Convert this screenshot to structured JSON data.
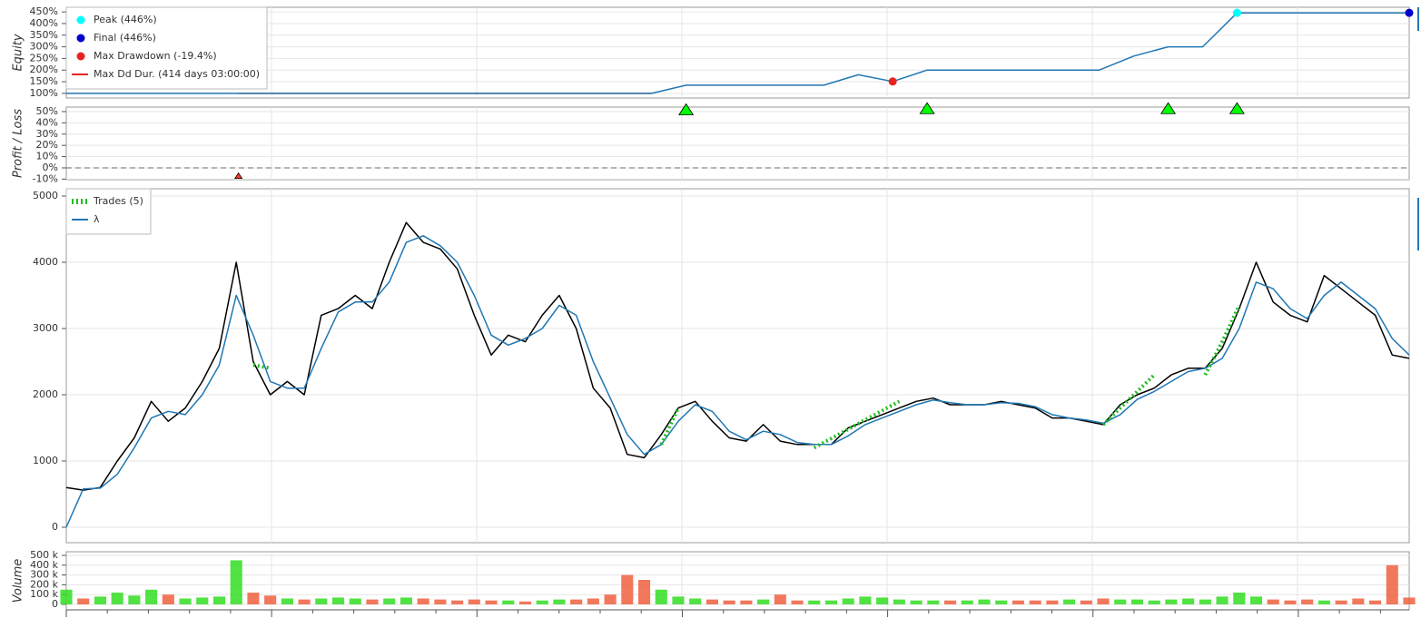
{
  "chart_data": [
    {
      "type": "line",
      "y_label": "Equity",
      "legend": "top-left",
      "grid": true,
      "ylim": [
        80,
        470
      ],
      "yticks": [
        {
          "value": 100,
          "label": "100%"
        },
        {
          "value": 150,
          "label": "150%"
        },
        {
          "value": 200,
          "label": "200%"
        },
        {
          "value": 250,
          "label": "250%"
        },
        {
          "value": 300,
          "label": "300%"
        },
        {
          "value": 350,
          "label": "350%"
        },
        {
          "value": 400,
          "label": "400%"
        },
        {
          "value": 450,
          "label": "450%"
        }
      ],
      "series": [
        {
          "color": "#1f77b4",
          "style": "line",
          "values": [
            100,
            100,
            100,
            100,
            100,
            100,
            100,
            100,
            100,
            100,
            100,
            100,
            100,
            100,
            100,
            100,
            100,
            100,
            135,
            135,
            135,
            135,
            135,
            180,
            151,
            200,
            200,
            200,
            200,
            200,
            200,
            260,
            300,
            300,
            446,
            446,
            446,
            446,
            446,
            446
          ]
        },
        {
          "name": "Peak (446%)",
          "color": "#00ffff",
          "style": "dot",
          "values": [
            null,
            null,
            null,
            null,
            null,
            null,
            null,
            null,
            null,
            null,
            null,
            null,
            null,
            null,
            null,
            null,
            null,
            null,
            null,
            null,
            null,
            null,
            null,
            null,
            null,
            null,
            null,
            null,
            null,
            null,
            null,
            null,
            null,
            null,
            446,
            null,
            null,
            null,
            null,
            null
          ]
        },
        {
          "name": "Final (446%)",
          "color": "#0000cc",
          "style": "dot",
          "values": [
            null,
            null,
            null,
            null,
            null,
            null,
            null,
            null,
            null,
            null,
            null,
            null,
            null,
            null,
            null,
            null,
            null,
            null,
            null,
            null,
            null,
            null,
            null,
            null,
            null,
            null,
            null,
            null,
            null,
            null,
            null,
            null,
            null,
            null,
            null,
            null,
            null,
            null,
            null,
            446
          ]
        },
        {
          "name": "Max Drawdown (-19.4%)",
          "color": "#e8231f",
          "style": "dot",
          "values": [
            null,
            null,
            null,
            null,
            null,
            null,
            null,
            null,
            null,
            null,
            null,
            null,
            null,
            null,
            null,
            null,
            null,
            null,
            null,
            null,
            null,
            null,
            null,
            null,
            151,
            null,
            null,
            null,
            null,
            null,
            null,
            null,
            null,
            null,
            null,
            null,
            null,
            null,
            null,
            null
          ]
        },
        {
          "name": "Max Dd Dur. (414 days 03:00:00)",
          "color": "#e8231f",
          "style": "line",
          "values": [
            null,
            null,
            null,
            null,
            null,
            100,
            100,
            100,
            100,
            100,
            100,
            100,
            100,
            100,
            100,
            100,
            100,
            100,
            null,
            null,
            null,
            null,
            null,
            null,
            null,
            null,
            null,
            null,
            null,
            null,
            null,
            null,
            null,
            null,
            null,
            null,
            null,
            null,
            null,
            null
          ]
        }
      ]
    },
    {
      "type": "scatter",
      "y_label": "Profit / Loss",
      "grid": true,
      "hline": 0,
      "ylim": [
        -10.5,
        54
      ],
      "yticks": [
        {
          "value": 50,
          "label": "50%"
        },
        {
          "value": 40,
          "label": "40%"
        },
        {
          "value": 30,
          "label": "30%"
        },
        {
          "value": 20,
          "label": "20%"
        },
        {
          "value": 10,
          "label": "10%"
        },
        {
          "value": 0,
          "label": "0%"
        },
        {
          "value": -10,
          "label": "-10%"
        }
      ],
      "series": [
        {
          "color": "#00ff00",
          "negative_color": "#ff3b30",
          "style": "triangle",
          "values": [
            null,
            null,
            null,
            null,
            null,
            -7,
            null,
            null,
            null,
            null,
            null,
            null,
            null,
            null,
            null,
            null,
            null,
            null,
            52,
            null,
            null,
            null,
            null,
            null,
            null,
            53,
            null,
            null,
            null,
            null,
            null,
            null,
            53,
            null,
            53,
            null,
            null,
            null,
            null,
            null
          ]
        }
      ]
    },
    {
      "type": "line",
      "legend": "top-left",
      "grid": true,
      "ylim": [
        -233,
        5110
      ],
      "yticks": [
        0,
        1000,
        2000,
        3000,
        4000,
        5000
      ],
      "series": [
        {
          "name": "Trades (5)",
          "color": "#22bb22",
          "style": "dashed",
          "values": [
            null,
            null,
            null,
            null,
            null,
            null,
            null,
            null,
            null,
            null,
            null,
            2450,
            2400,
            null,
            null,
            null,
            null,
            null,
            null,
            null,
            null,
            null,
            null,
            null,
            null,
            null,
            null,
            null,
            null,
            null,
            null,
            null,
            null,
            null,
            null,
            1250,
            1800,
            null,
            null,
            null,
            null,
            null,
            null,
            null,
            1200,
            1340,
            1480,
            1620,
            1760,
            1900,
            null,
            null,
            null,
            null,
            null,
            null,
            null,
            null,
            null,
            null,
            null,
            1550,
            1800,
            2050,
            2300,
            null,
            null,
            2300,
            2800,
            3350,
            null,
            null,
            null,
            null,
            null,
            null,
            null,
            null,
            null,
            null
          ]
        },
        {
          "name": "λ",
          "color": "#1f77b4",
          "style": "line",
          "values": [
            0,
            580,
            590,
            800,
            1200,
            1650,
            1750,
            1700,
            2000,
            2450,
            3500,
            2900,
            2200,
            2100,
            2100,
            2700,
            3250,
            3400,
            3400,
            3700,
            4300,
            4400,
            4250,
            4000,
            3500,
            2900,
            2750,
            2850,
            3000,
            3350,
            3200,
            2500,
            1950,
            1400,
            1100,
            1250,
            1600,
            1850,
            1750,
            1450,
            1320,
            1450,
            1400,
            1280,
            1250,
            1250,
            1380,
            1550,
            1650,
            1750,
            1850,
            1920,
            1880,
            1850,
            1850,
            1880,
            1870,
            1820,
            1700,
            1650,
            1620,
            1570,
            1700,
            1930,
            2050,
            2200,
            2350,
            2400,
            2550,
            3000,
            3700,
            3600,
            3300,
            3150,
            3500,
            3700,
            3500,
            3300,
            2850,
            2600
          ]
        },
        {
          "color": "#000000",
          "style": "line",
          "values": [
            600,
            560,
            600,
            1000,
            1350,
            1900,
            1600,
            1800,
            2200,
            2700,
            4000,
            2500,
            2000,
            2200,
            2000,
            3200,
            3300,
            3500,
            3300,
            4000,
            4600,
            4300,
            4200,
            3900,
            3200,
            2600,
            2900,
            2800,
            3200,
            3500,
            3000,
            2100,
            1800,
            1100,
            1050,
            1400,
            1800,
            1900,
            1600,
            1350,
            1300,
            1550,
            1300,
            1250,
            1250,
            1250,
            1500,
            1600,
            1700,
            1800,
            1900,
            1950,
            1850,
            1850,
            1850,
            1900,
            1850,
            1800,
            1650,
            1650,
            1600,
            1550,
            1850,
            2000,
            2100,
            2300,
            2400,
            2400,
            2700,
            3300,
            4000,
            3400,
            3200,
            3100,
            3800,
            3600,
            3400,
            3200,
            2600,
            2550
          ]
        }
      ]
    },
    {
      "type": "bar",
      "y_label": "Volume",
      "grid": true,
      "up_color": "#33dd22",
      "down_color": "#f06040",
      "ylim": [
        -55500,
        537000
      ],
      "yticks": [
        0,
        {
          "value": 100000,
          "label": "100 k"
        },
        {
          "value": 200000,
          "label": "200 k"
        },
        {
          "value": 300000,
          "label": "300 k"
        },
        {
          "value": 400000,
          "label": "400 k"
        },
        {
          "value": 500000,
          "label": "500 k"
        }
      ],
      "values": [
        150000,
        60000,
        80000,
        120000,
        90000,
        150000,
        100000,
        60000,
        70000,
        80000,
        450000,
        120000,
        90000,
        60000,
        50000,
        60000,
        70000,
        60000,
        50000,
        60000,
        70000,
        60000,
        50000,
        40000,
        50000,
        40000,
        40000,
        30000,
        40000,
        50000,
        50000,
        60000,
        100000,
        300000,
        250000,
        150000,
        80000,
        60000,
        50000,
        40000,
        40000,
        50000,
        100000,
        40000,
        40000,
        40000,
        60000,
        80000,
        70000,
        50000,
        40000,
        40000,
        40000,
        40000,
        50000,
        40000,
        40000,
        40000,
        40000,
        50000,
        40000,
        60000,
        50000,
        50000,
        40000,
        50000,
        60000,
        50000,
        80000,
        120000,
        80000,
        50000,
        40000,
        50000,
        40000,
        40000,
        60000,
        40000,
        400000,
        70000
      ]
    }
  ]
}
